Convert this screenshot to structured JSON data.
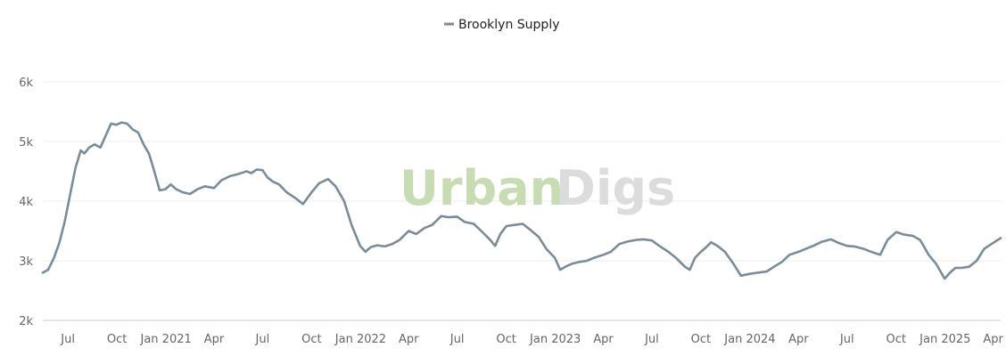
{
  "watermark": {
    "part1": "Urban",
    "part2": "Digs"
  },
  "chart_data": {
    "type": "line",
    "title": "",
    "xlabel": "",
    "ylabel": "",
    "legend": {
      "position": "top-center"
    },
    "grid": true,
    "ylim": [
      2000,
      6000
    ],
    "y_ticks": [
      {
        "value": 2000,
        "label": "2k"
      },
      {
        "value": 3000,
        "label": "3k"
      },
      {
        "value": 4000,
        "label": "4k"
      },
      {
        "value": 5000,
        "label": "5k"
      },
      {
        "value": 6000,
        "label": "6k"
      }
    ],
    "xlim": [
      "2020-05-15",
      "2025-04-15"
    ],
    "x_ticks": [
      {
        "date": "2020-07-01",
        "label": "Jul"
      },
      {
        "date": "2020-10-01",
        "label": "Oct"
      },
      {
        "date": "2021-01-01",
        "label": "Jan 2021"
      },
      {
        "date": "2021-04-01",
        "label": "Apr"
      },
      {
        "date": "2021-07-01",
        "label": "Jul"
      },
      {
        "date": "2021-10-01",
        "label": "Oct"
      },
      {
        "date": "2022-01-01",
        "label": "Jan 2022"
      },
      {
        "date": "2022-04-01",
        "label": "Apr"
      },
      {
        "date": "2022-07-01",
        "label": "Jul"
      },
      {
        "date": "2022-10-01",
        "label": "Oct"
      },
      {
        "date": "2023-01-01",
        "label": "Jan 2023"
      },
      {
        "date": "2023-04-01",
        "label": "Apr"
      },
      {
        "date": "2023-07-01",
        "label": "Jul"
      },
      {
        "date": "2023-10-01",
        "label": "Oct"
      },
      {
        "date": "2024-01-01",
        "label": "Jan 2024"
      },
      {
        "date": "2024-04-01",
        "label": "Apr"
      },
      {
        "date": "2024-07-01",
        "label": "Jul"
      },
      {
        "date": "2024-10-01",
        "label": "Oct"
      },
      {
        "date": "2025-01-01",
        "label": "Jan 2025"
      },
      {
        "date": "2025-04-01",
        "label": "Apr"
      }
    ],
    "series": [
      {
        "name": "Brooklyn Supply",
        "color": "#7a8c99",
        "points": [
          [
            "2020-05-15",
            2800
          ],
          [
            "2020-05-25",
            2850
          ],
          [
            "2020-06-05",
            3050
          ],
          [
            "2020-06-15",
            3300
          ],
          [
            "2020-06-25",
            3650
          ],
          [
            "2020-07-05",
            4100
          ],
          [
            "2020-07-15",
            4550
          ],
          [
            "2020-07-25",
            4850
          ],
          [
            "2020-08-01",
            4800
          ],
          [
            "2020-08-10",
            4900
          ],
          [
            "2020-08-20",
            4950
          ],
          [
            "2020-08-31",
            4900
          ],
          [
            "2020-09-10",
            5100
          ],
          [
            "2020-09-20",
            5300
          ],
          [
            "2020-09-30",
            5280
          ],
          [
            "2020-10-10",
            5320
          ],
          [
            "2020-10-20",
            5300
          ],
          [
            "2020-10-31",
            5200
          ],
          [
            "2020-11-10",
            5150
          ],
          [
            "2020-11-20",
            4950
          ],
          [
            "2020-11-30",
            4800
          ],
          [
            "2020-12-10",
            4500
          ],
          [
            "2020-12-20",
            4180
          ],
          [
            "2020-12-31",
            4200
          ],
          [
            "2021-01-10",
            4280
          ],
          [
            "2021-01-20",
            4200
          ],
          [
            "2021-02-01",
            4150
          ],
          [
            "2021-02-15",
            4120
          ],
          [
            "2021-03-01",
            4200
          ],
          [
            "2021-03-15",
            4250
          ],
          [
            "2021-04-01",
            4220
          ],
          [
            "2021-04-15",
            4350
          ],
          [
            "2021-05-01",
            4420
          ],
          [
            "2021-05-15",
            4450
          ],
          [
            "2021-06-01",
            4500
          ],
          [
            "2021-06-10",
            4470
          ],
          [
            "2021-06-20",
            4530
          ],
          [
            "2021-07-01",
            4520
          ],
          [
            "2021-07-10",
            4400
          ],
          [
            "2021-07-20",
            4330
          ],
          [
            "2021-08-01",
            4280
          ],
          [
            "2021-08-15",
            4150
          ],
          [
            "2021-09-01",
            4050
          ],
          [
            "2021-09-15",
            3950
          ],
          [
            "2021-10-01",
            4150
          ],
          [
            "2021-10-15",
            4300
          ],
          [
            "2021-11-01",
            4370
          ],
          [
            "2021-11-15",
            4250
          ],
          [
            "2021-12-01",
            4000
          ],
          [
            "2021-12-15",
            3600
          ],
          [
            "2021-12-31",
            3250
          ],
          [
            "2022-01-10",
            3150
          ],
          [
            "2022-01-20",
            3230
          ],
          [
            "2022-02-01",
            3260
          ],
          [
            "2022-02-15",
            3240
          ],
          [
            "2022-03-01",
            3280
          ],
          [
            "2022-03-15",
            3350
          ],
          [
            "2022-04-01",
            3500
          ],
          [
            "2022-04-15",
            3450
          ],
          [
            "2022-05-01",
            3550
          ],
          [
            "2022-05-15",
            3600
          ],
          [
            "2022-06-01",
            3750
          ],
          [
            "2022-06-15",
            3730
          ],
          [
            "2022-07-01",
            3740
          ],
          [
            "2022-07-15",
            3650
          ],
          [
            "2022-08-01",
            3620
          ],
          [
            "2022-08-15",
            3500
          ],
          [
            "2022-09-01",
            3350
          ],
          [
            "2022-09-10",
            3250
          ],
          [
            "2022-09-20",
            3450
          ],
          [
            "2022-10-01",
            3580
          ],
          [
            "2022-10-15",
            3600
          ],
          [
            "2022-11-01",
            3620
          ],
          [
            "2022-11-15",
            3520
          ],
          [
            "2022-12-01",
            3400
          ],
          [
            "2022-12-15",
            3200
          ],
          [
            "2022-12-31",
            3050
          ],
          [
            "2023-01-10",
            2850
          ],
          [
            "2023-01-20",
            2900
          ],
          [
            "2023-02-01",
            2950
          ],
          [
            "2023-02-15",
            2980
          ],
          [
            "2023-03-01",
            3000
          ],
          [
            "2023-03-15",
            3050
          ],
          [
            "2023-04-01",
            3100
          ],
          [
            "2023-04-15",
            3150
          ],
          [
            "2023-05-01",
            3280
          ],
          [
            "2023-05-15",
            3320
          ],
          [
            "2023-06-01",
            3350
          ],
          [
            "2023-06-15",
            3360
          ],
          [
            "2023-07-01",
            3340
          ],
          [
            "2023-07-15",
            3250
          ],
          [
            "2023-08-01",
            3150
          ],
          [
            "2023-08-15",
            3050
          ],
          [
            "2023-09-01",
            2900
          ],
          [
            "2023-09-10",
            2850
          ],
          [
            "2023-09-20",
            3050
          ],
          [
            "2023-10-01",
            3150
          ],
          [
            "2023-10-10",
            3220
          ],
          [
            "2023-10-20",
            3310
          ],
          [
            "2023-11-01",
            3250
          ],
          [
            "2023-11-15",
            3150
          ],
          [
            "2023-12-01",
            2950
          ],
          [
            "2023-12-15",
            2750
          ],
          [
            "2024-01-01",
            2780
          ],
          [
            "2024-01-15",
            2800
          ],
          [
            "2024-02-01",
            2820
          ],
          [
            "2024-02-15",
            2900
          ],
          [
            "2024-03-01",
            2980
          ],
          [
            "2024-03-15",
            3100
          ],
          [
            "2024-04-01",
            3150
          ],
          [
            "2024-04-15",
            3200
          ],
          [
            "2024-05-01",
            3260
          ],
          [
            "2024-05-15",
            3320
          ],
          [
            "2024-06-01",
            3360
          ],
          [
            "2024-06-15",
            3300
          ],
          [
            "2024-07-01",
            3250
          ],
          [
            "2024-07-15",
            3240
          ],
          [
            "2024-08-01",
            3200
          ],
          [
            "2024-08-15",
            3150
          ],
          [
            "2024-09-01",
            3100
          ],
          [
            "2024-09-15",
            3350
          ],
          [
            "2024-10-01",
            3480
          ],
          [
            "2024-10-15",
            3440
          ],
          [
            "2024-11-01",
            3420
          ],
          [
            "2024-11-15",
            3350
          ],
          [
            "2024-12-01",
            3100
          ],
          [
            "2024-12-15",
            2950
          ],
          [
            "2024-12-31",
            2700
          ],
          [
            "2025-01-10",
            2800
          ],
          [
            "2025-01-20",
            2880
          ],
          [
            "2025-02-01",
            2880
          ],
          [
            "2025-02-15",
            2900
          ],
          [
            "2025-03-01",
            3000
          ],
          [
            "2025-03-15",
            3200
          ],
          [
            "2025-04-01",
            3300
          ],
          [
            "2025-04-15",
            3380
          ]
        ]
      }
    ]
  }
}
